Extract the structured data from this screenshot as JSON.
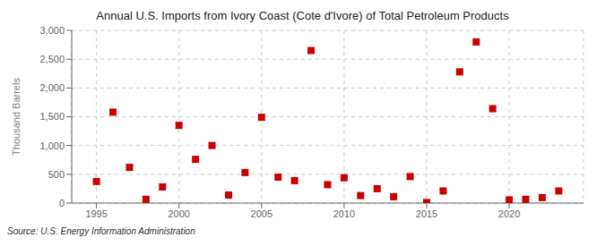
{
  "chart_data": {
    "type": "scatter",
    "title": "Annual U.S. Imports from Ivory Coast (Cote d'Ivore) of Total Petroleum Products",
    "y_label": "Thousand Barrels",
    "annotations": [
      "Source: U.S. Energy Information Administration"
    ],
    "x": [
      1995,
      1996,
      1997,
      1998,
      1999,
      2000,
      2001,
      2002,
      2003,
      2004,
      2005,
      2006,
      2007,
      2008,
      2009,
      2010,
      2011,
      2012,
      2013,
      2014,
      2015,
      2016,
      2017,
      2018,
      2019,
      2020,
      2021,
      2022,
      2023
    ],
    "values": [
      375,
      1580,
      620,
      65,
      280,
      1350,
      760,
      1000,
      140,
      530,
      1490,
      450,
      390,
      2650,
      320,
      440,
      130,
      250,
      110,
      460,
      10,
      210,
      2280,
      2800,
      1640,
      55,
      65,
      95,
      210
    ],
    "color": "#cc0000",
    "marker": "square",
    "xlim": [
      1993.5,
      2024.5
    ],
    "xticks": [
      1995,
      2000,
      2005,
      2010,
      2015,
      2020
    ],
    "ylim": [
      0,
      3000
    ],
    "yticks": [
      0,
      500,
      {
        "value": 1000,
        "label": "1,000"
      },
      {
        "value": 1500,
        "label": "1,500"
      },
      {
        "value": 2000,
        "label": "2,000"
      },
      {
        "value": 2500,
        "label": "2,500"
      },
      {
        "value": 3000,
        "label": "3,000"
      }
    ],
    "grid": true
  }
}
